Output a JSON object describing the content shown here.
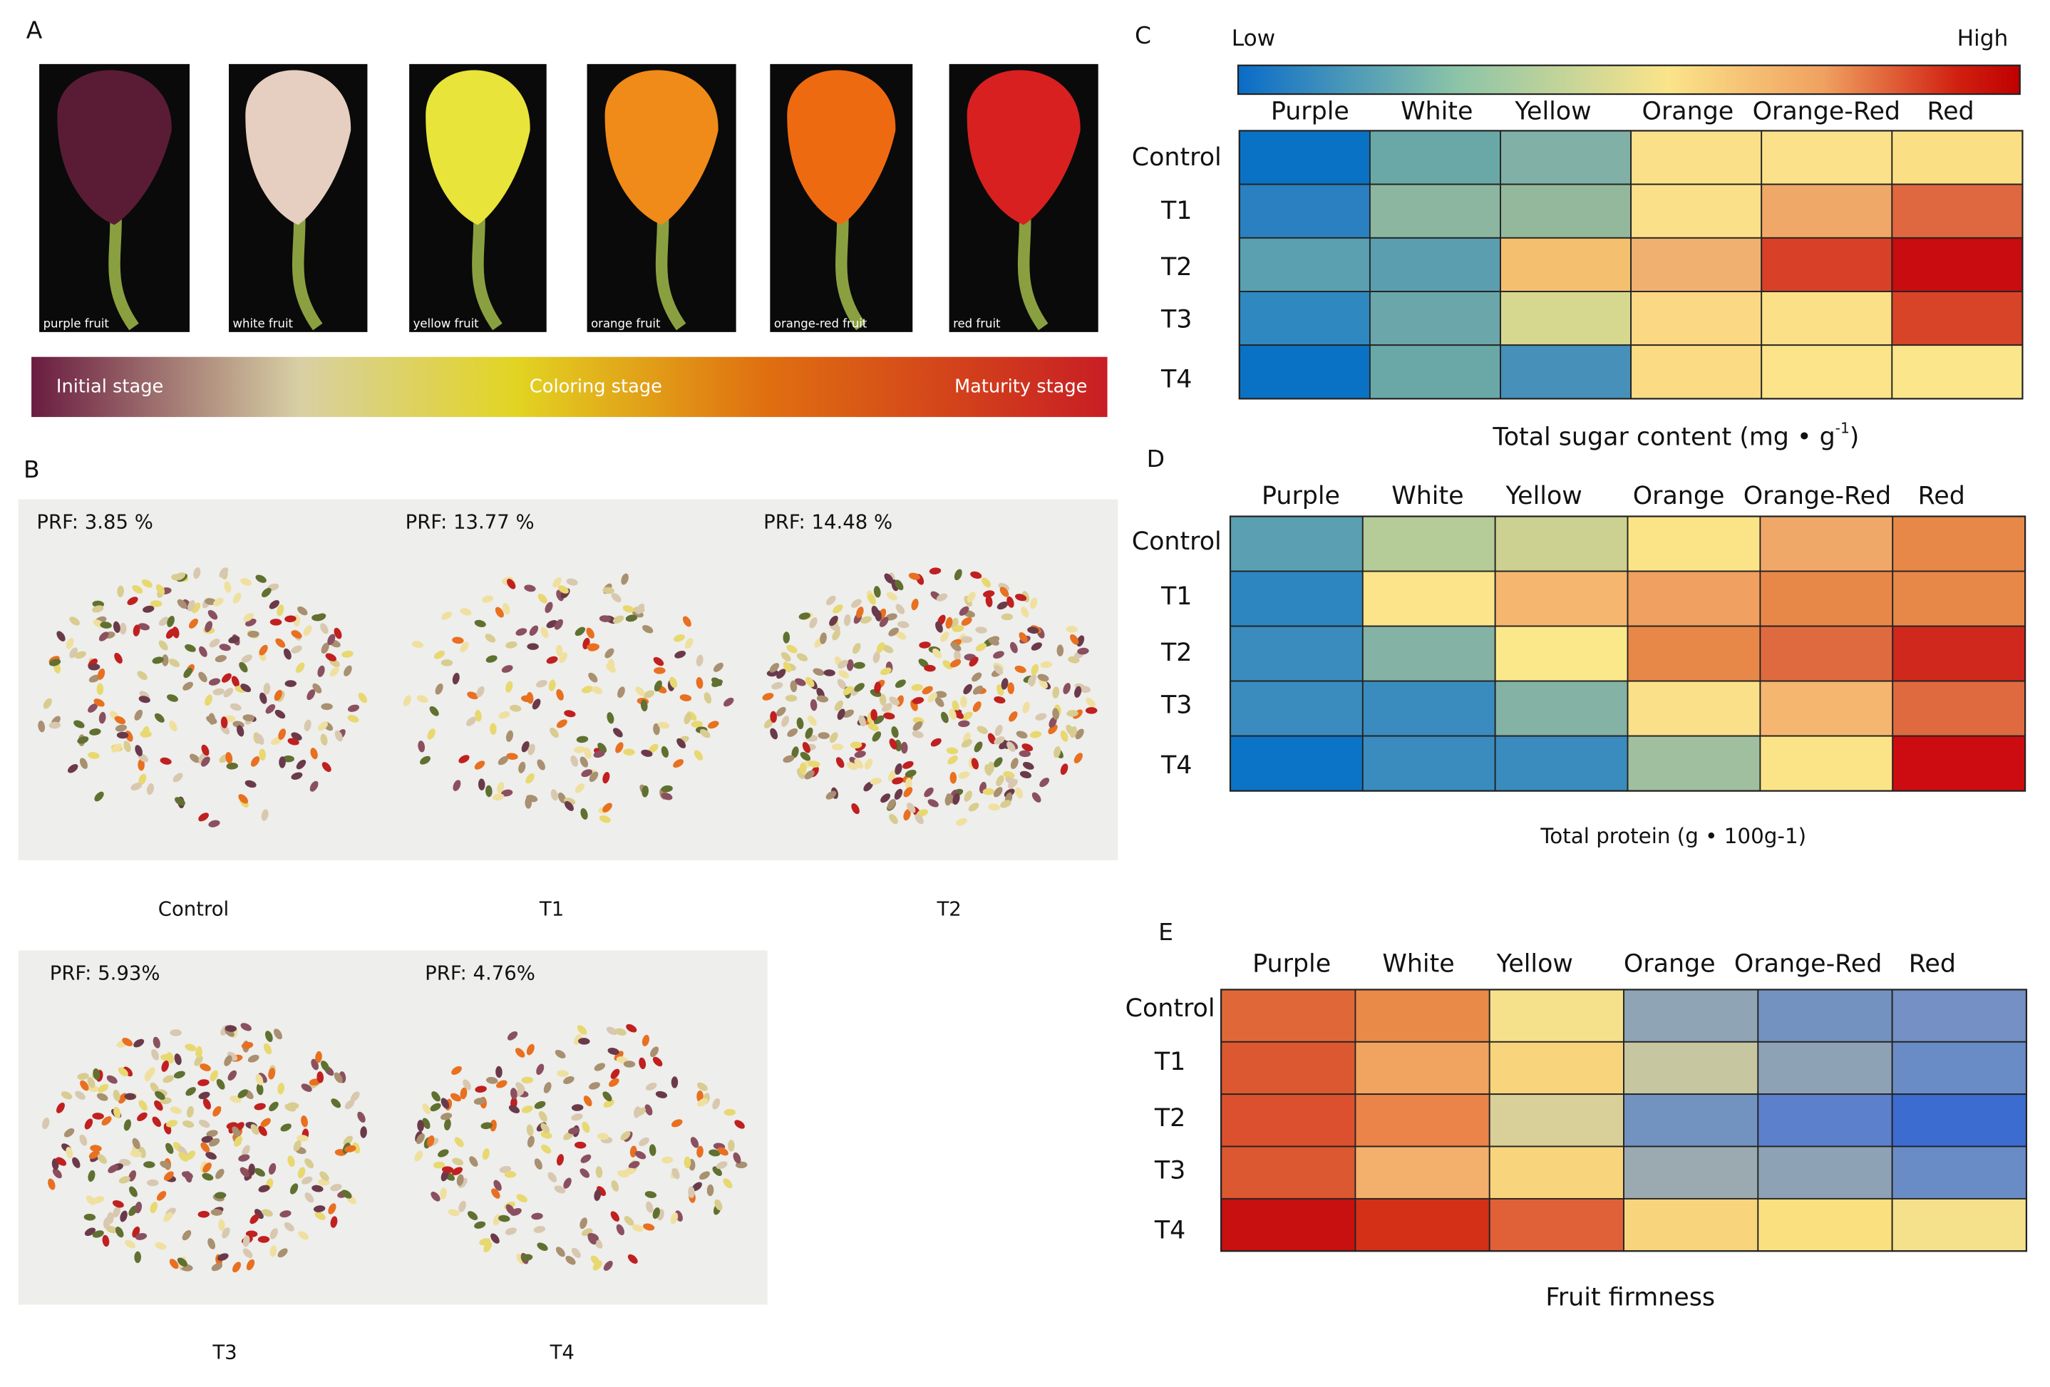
{
  "panels": {
    "A": {
      "label": "A",
      "fruits": [
        "purple fruit",
        "white fruit",
        "yellow fruit",
        "orange fruit",
        "orange-red fruit",
        "red fruit"
      ],
      "fruit_colors": [
        "#5a1c34",
        "#e6cfc0",
        "#e8e43a",
        "#f08a18",
        "#ee6a10",
        "#d82020"
      ],
      "stages": [
        "Initial stage",
        "Coloring stage",
        "Maturity stage"
      ]
    },
    "B": {
      "label": "B",
      "photos": [
        {
          "prf": "PRF: 3.85  %",
          "name": "Control"
        },
        {
          "prf": "PRF: 13.77 %",
          "name": "T1"
        },
        {
          "prf": "PRF: 14.48 %",
          "name": "T2"
        },
        {
          "prf": "PRF: 5.93%",
          "name": "T3"
        },
        {
          "prf": "PRF: 4.76%",
          "name": "T4"
        }
      ]
    },
    "C": {
      "label": "C",
      "low": "Low",
      "high": "High",
      "columns": [
        "Purple",
        "White",
        "Yellow",
        "Orange",
        "Orange-Red",
        "Red"
      ],
      "rows": [
        "Control",
        "T1",
        "T2",
        "T3",
        "T4"
      ],
      "colors": [
        [
          "#0a72c4",
          "#6aa8a8",
          "#80b0a6",
          "#fbe08a",
          "#fbe28a",
          "#fadf85"
        ],
        [
          "#2a80c0",
          "#8cb6a0",
          "#94b89c",
          "#fbe08a",
          "#f0a868",
          "#e06840"
        ],
        [
          "#5aa0b0",
          "#5a9eb0",
          "#f5bf70",
          "#f0b070",
          "#d84028",
          "#c80c10"
        ],
        [
          "#3088c0",
          "#6aa6aa",
          "#d6d890",
          "#fbd884",
          "#fbe088",
          "#d84428"
        ],
        [
          "#0a72c4",
          "#6aa8a8",
          "#4690ba",
          "#fbdc84",
          "#fbe48a",
          "#fbe68c"
        ]
      ],
      "caption": "Total sugar content (mg • g",
      "caption_sup": "-1",
      "caption_end": ")"
    },
    "D": {
      "label": "D",
      "columns": [
        "Purple",
        "White",
        "Yellow",
        "Orange",
        "Orange-Red",
        "Red"
      ],
      "rows": [
        "Control",
        "T1",
        "T2",
        "T3",
        "T4"
      ],
      "colors": [
        [
          "#5aa0b2",
          "#b6cc98",
          "#ccd090",
          "#fbe488",
          "#f0a868",
          "#e88848"
        ],
        [
          "#2e86c0",
          "#fbe48a",
          "#f5b670",
          "#f0a060",
          "#e88848",
          "#e88848"
        ],
        [
          "#3a8cbe",
          "#84b2a4",
          "#fbe88a",
          "#e88848",
          "#e06a40",
          "#d0281c"
        ],
        [
          "#3a8cbe",
          "#3a8cbe",
          "#84b2a4",
          "#fbe08a",
          "#f5b670",
          "#e06a40"
        ],
        [
          "#0c74c6",
          "#3a8cbe",
          "#3a8cbe",
          "#a0bf9e",
          "#fbe488",
          "#cc0c10"
        ]
      ],
      "caption": "Total protein (g • 100g-1)"
    },
    "E": {
      "label": "E",
      "columns": [
        "Purple",
        "White",
        "Yellow",
        "Orange",
        "Orange-Red",
        "Red"
      ],
      "rows": [
        "Control",
        "T1",
        "T2",
        "T3",
        "T4"
      ],
      "colors": [
        [
          "#e06838",
          "#ea8a48",
          "#f5e08c",
          "#8fa4b4",
          "#7492c0",
          "#7490c4"
        ],
        [
          "#dc5830",
          "#f0a460",
          "#f8d47c",
          "#c6c6a0",
          "#8ea2b6",
          "#6a8cc6"
        ],
        [
          "#dc5030",
          "#ea8448",
          "#d8d098",
          "#7292c0",
          "#5c80cc",
          "#3c6cd0"
        ],
        [
          "#dc5830",
          "#f2b06c",
          "#f8d47c",
          "#9aaab0",
          "#8ea2b6",
          "#6a8cc6"
        ],
        [
          "#c81010",
          "#d43018",
          "#e06038",
          "#f8d47c",
          "#fbe080",
          "#f5e08c"
        ]
      ],
      "caption": "Fruit firmness"
    }
  }
}
